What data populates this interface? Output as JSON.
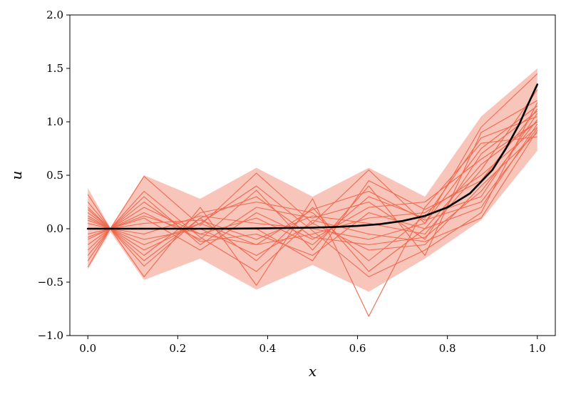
{
  "chart_data": {
    "type": "line",
    "title": "",
    "xlabel": "x",
    "ylabel": "u",
    "xlim": [
      -0.04,
      1.04
    ],
    "ylim": [
      -1.0,
      2.0
    ],
    "xticks": [
      0.0,
      0.2,
      0.4,
      0.6,
      0.8,
      1.0
    ],
    "xtick_labels": [
      "0.0",
      "0.2",
      "0.4",
      "0.6",
      "0.8",
      "1.0"
    ],
    "yticks": [
      -1.0,
      -0.5,
      0.0,
      0.5,
      1.0,
      1.5,
      2.0
    ],
    "ytick_labels": [
      "−1.0",
      "−0.5",
      "0.0",
      "0.5",
      "1.0",
      "1.5",
      "2.0"
    ],
    "grid": false,
    "legend": "none",
    "colors": {
      "samples": "#f0694f",
      "band": "#f5b2a4",
      "reference": "#000000"
    },
    "x": [
      0.0,
      0.05,
      0.125,
      0.25,
      0.375,
      0.5,
      0.625,
      0.75,
      0.875,
      1.0
    ],
    "band": {
      "upper": [
        0.38,
        0.01,
        0.5,
        0.28,
        0.57,
        0.3,
        0.57,
        0.3,
        1.05,
        1.5
      ],
      "lower": [
        -0.38,
        -0.03,
        -0.48,
        -0.28,
        -0.57,
        -0.34,
        -0.59,
        -0.28,
        0.08,
        0.73
      ]
    },
    "series": [
      {
        "values": [
          0.32,
          0.0,
          0.49,
          0.03,
          0.52,
          0.05,
          0.55,
          0.05,
          0.95,
          1.45
        ]
      },
      {
        "values": [
          -0.36,
          0.0,
          -0.45,
          0.2,
          -0.53,
          0.28,
          -0.82,
          0.2,
          0.8,
          0.86
        ]
      },
      {
        "values": [
          0.2,
          0.0,
          0.15,
          -0.1,
          0.36,
          -0.2,
          0.4,
          -0.25,
          0.9,
          1.2
        ]
      },
      {
        "values": [
          -0.2,
          0.0,
          -0.3,
          0.1,
          -0.3,
          0.2,
          -0.4,
          0.0,
          0.6,
          1.0
        ]
      },
      {
        "values": [
          0.15,
          0.0,
          0.3,
          -0.15,
          0.2,
          0.1,
          0.25,
          -0.1,
          0.7,
          1.1
        ]
      },
      {
        "values": [
          -0.1,
          0.0,
          -0.15,
          0.05,
          -0.15,
          -0.05,
          0.1,
          0.15,
          0.5,
          0.95
        ]
      },
      {
        "values": [
          0.05,
          0.0,
          0.2,
          -0.05,
          0.1,
          -0.15,
          0.3,
          0.1,
          0.85,
          1.05
        ]
      },
      {
        "values": [
          -0.25,
          0.0,
          -0.1,
          0.0,
          -0.25,
          0.05,
          -0.2,
          -0.15,
          0.4,
          0.9
        ]
      },
      {
        "values": [
          0.1,
          0.0,
          -0.05,
          0.12,
          0.05,
          0.0,
          -0.1,
          0.05,
          0.75,
          1.15
        ]
      },
      {
        "values": [
          -0.05,
          0.0,
          0.1,
          -0.2,
          0.15,
          -0.1,
          0.2,
          0.25,
          0.65,
          1.0
        ]
      },
      {
        "values": [
          0.25,
          0.0,
          0.05,
          0.08,
          -0.1,
          0.12,
          0.05,
          -0.05,
          0.55,
          1.3
        ]
      },
      {
        "values": [
          -0.3,
          0.0,
          0.25,
          -0.12,
          -0.05,
          -0.25,
          0.15,
          0.0,
          0.2,
          0.98
        ]
      },
      {
        "values": [
          0.0,
          0.0,
          -0.25,
          0.15,
          0.25,
          0.15,
          -0.3,
          0.12,
          0.3,
          1.08
        ]
      },
      {
        "values": [
          0.12,
          0.0,
          0.35,
          -0.08,
          -0.4,
          0.08,
          -0.05,
          -0.12,
          0.1,
          0.92
        ]
      },
      {
        "values": [
          -0.15,
          0.0,
          0.0,
          0.0,
          0.0,
          -0.3,
          0.45,
          0.18,
          0.45,
          1.12
        ]
      },
      {
        "values": [
          0.08,
          0.0,
          -0.35,
          0.1,
          0.3,
          -0.08,
          -0.15,
          -0.08,
          0.35,
          1.02
        ]
      },
      {
        "values": [
          -0.08,
          0.0,
          0.12,
          -0.05,
          -0.15,
          0.18,
          0.35,
          0.08,
          0.25,
          0.94
        ]
      },
      {
        "values": [
          0.18,
          0.0,
          -0.2,
          0.05,
          0.4,
          -0.02,
          -0.45,
          -0.2,
          0.15,
          1.18
        ]
      }
    ],
    "reference_curve": {
      "x": [
        0.0,
        0.1,
        0.2,
        0.3,
        0.4,
        0.5,
        0.55,
        0.6,
        0.65,
        0.7,
        0.75,
        0.8,
        0.85,
        0.9,
        0.93,
        0.96,
        0.98,
        1.0
      ],
      "y": [
        0.0,
        0.0,
        0.0,
        0.0,
        0.004,
        0.01,
        0.016,
        0.026,
        0.043,
        0.072,
        0.12,
        0.2,
        0.33,
        0.55,
        0.75,
        0.98,
        1.17,
        1.35
      ]
    }
  }
}
